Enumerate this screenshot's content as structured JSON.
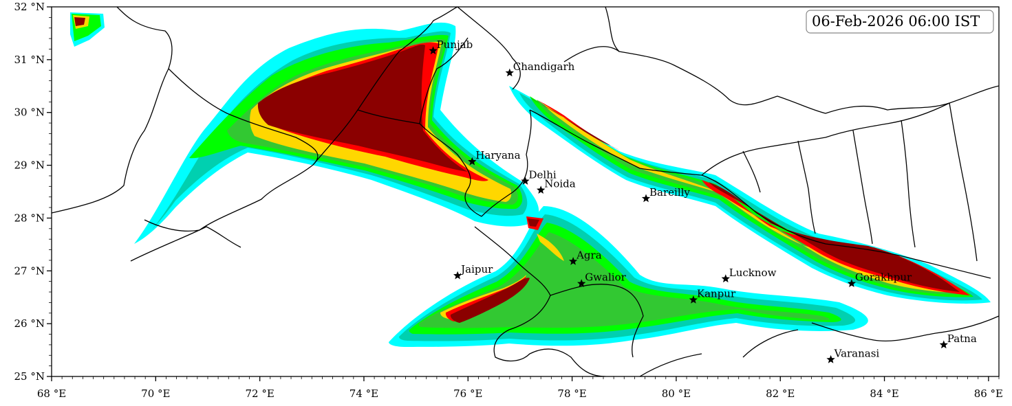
{
  "timestamp": "06-Feb-2026 06:00 IST",
  "colors": {
    "l1": "#00ffff",
    "l2": "#00d0b0",
    "l3": "#00ff00",
    "l4": "#32c832",
    "l5": "#ffd700",
    "l6": "#ff0000",
    "l7": "#8b0000"
  },
  "axes": {
    "lat_range": [
      25,
      32
    ],
    "lon_range": [
      68,
      86.2
    ],
    "lat_ticks": [
      {
        "value": 25,
        "label": "25 °N"
      },
      {
        "value": 26,
        "label": "26 °N"
      },
      {
        "value": 27,
        "label": "27 °N"
      },
      {
        "value": 28,
        "label": "28 °N"
      },
      {
        "value": 29,
        "label": "29 °N"
      },
      {
        "value": 30,
        "label": "30 °N"
      },
      {
        "value": 31,
        "label": "31 °N"
      },
      {
        "value": 32,
        "label": "32 °N"
      }
    ],
    "lon_ticks": [
      {
        "value": 68,
        "label": "68 °E"
      },
      {
        "value": 70,
        "label": "70 °E"
      },
      {
        "value": 72,
        "label": "72 °E"
      },
      {
        "value": 74,
        "label": "74 °E"
      },
      {
        "value": 76,
        "label": "76 °E"
      },
      {
        "value": 78,
        "label": "78 °E"
      },
      {
        "value": 80,
        "label": "80 °E"
      },
      {
        "value": 82,
        "label": "82 °E"
      },
      {
        "value": 84,
        "label": "84 °E"
      },
      {
        "value": 86,
        "label": "86 °E"
      }
    ]
  },
  "cities": [
    {
      "name": "Punjab",
      "lon": 75.33,
      "lat": 31.17
    },
    {
      "name": "Chandigarh",
      "lon": 76.8,
      "lat": 30.75
    },
    {
      "name": "Haryana",
      "lon": 76.08,
      "lat": 29.07
    },
    {
      "name": "Delhi",
      "lon": 77.1,
      "lat": 28.7
    },
    {
      "name": "Noida",
      "lon": 77.4,
      "lat": 28.53
    },
    {
      "name": "Bareilly",
      "lon": 79.42,
      "lat": 28.37
    },
    {
      "name": "Jaipur",
      "lon": 75.8,
      "lat": 26.91
    },
    {
      "name": "Agra",
      "lon": 78.02,
      "lat": 27.18
    },
    {
      "name": "Gwalior",
      "lon": 78.18,
      "lat": 26.76
    },
    {
      "name": "Lucknow",
      "lon": 80.95,
      "lat": 26.85
    },
    {
      "name": "Kanpur",
      "lon": 80.33,
      "lat": 26.45
    },
    {
      "name": "Gorakhpur",
      "lon": 83.37,
      "lat": 26.76
    },
    {
      "name": "Varanasi",
      "lon": 82.97,
      "lat": 25.32
    },
    {
      "name": "Patna",
      "lon": 85.14,
      "lat": 25.6
    }
  ]
}
